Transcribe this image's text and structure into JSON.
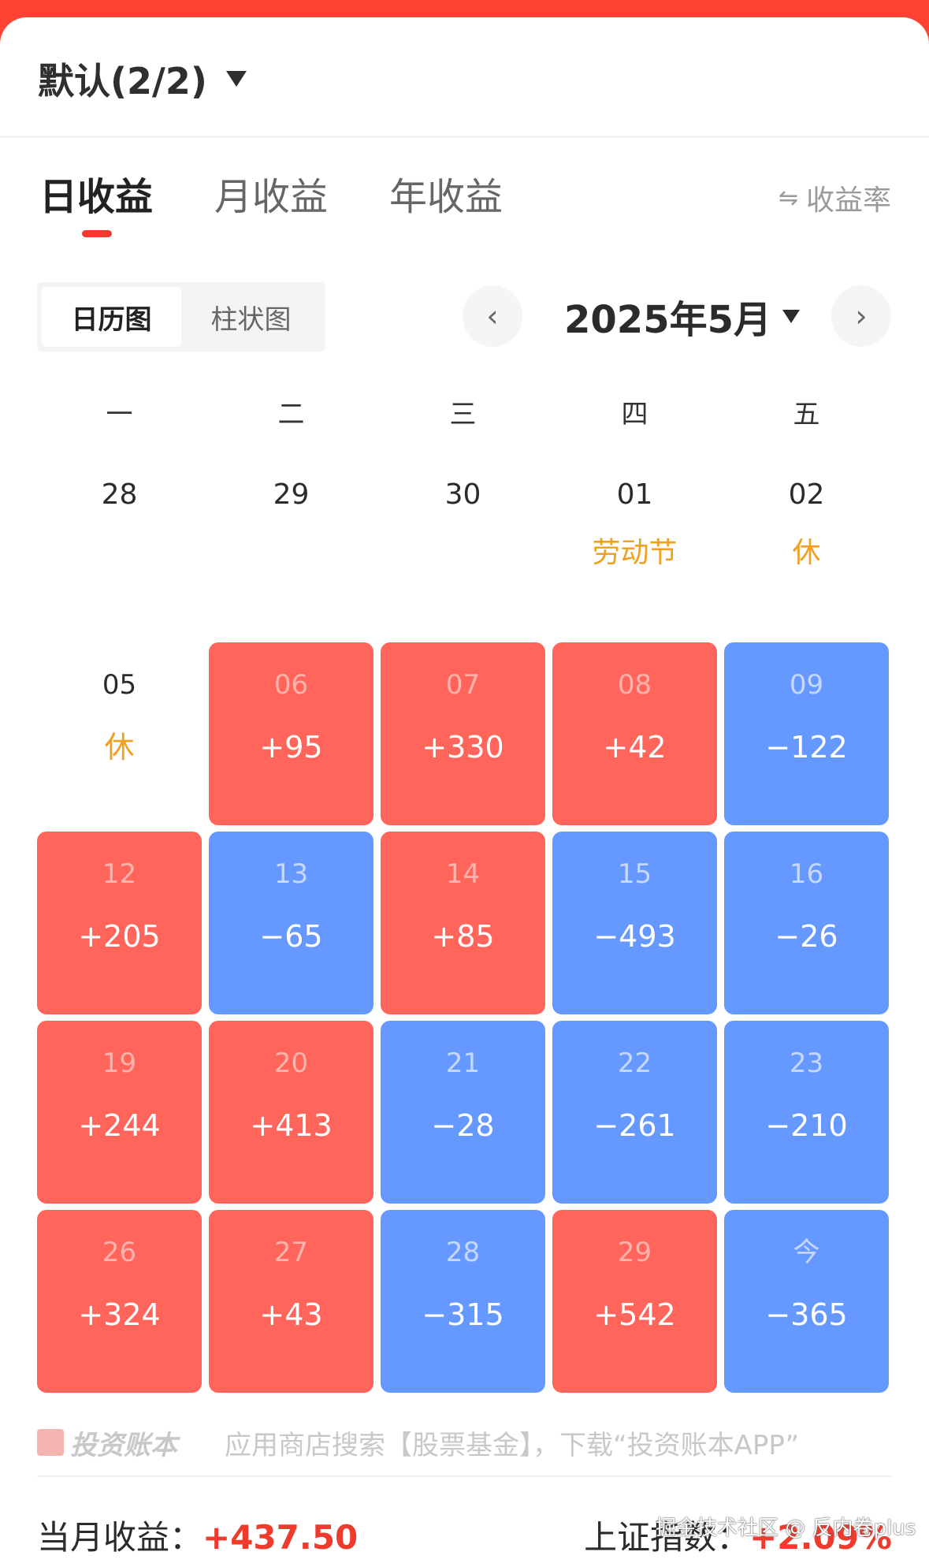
{
  "header": {
    "account_name": "默认(2/2)"
  },
  "tabs": [
    {
      "label": "日收益",
      "active": true
    },
    {
      "label": "月收益",
      "active": false
    },
    {
      "label": "年收益",
      "active": false
    }
  ],
  "toggle_rate": {
    "icon": "⇋",
    "label": "收益率"
  },
  "view_switch": [
    {
      "label": "日历图",
      "active": true
    },
    {
      "label": "柱状图",
      "active": false
    }
  ],
  "month_nav": {
    "prev_icon": "‹",
    "title": "2025年5月",
    "next_icon": "›"
  },
  "colors": {
    "gain": "#ff655a",
    "loss": "#6699ff",
    "holiday": "#f0a020",
    "accent": "#ef3a2e"
  },
  "weekdays": [
    "一",
    "二",
    "三",
    "四",
    "五"
  ],
  "week1": [
    {
      "day": "28",
      "note": ""
    },
    {
      "day": "29",
      "note": ""
    },
    {
      "day": "30",
      "note": ""
    },
    {
      "day": "01",
      "note": "劳动节"
    },
    {
      "day": "02",
      "note": "休"
    }
  ],
  "weeks": [
    [
      {
        "day": "05",
        "value": "休",
        "type": "blank"
      },
      {
        "day": "06",
        "value": "+95",
        "type": "up"
      },
      {
        "day": "07",
        "value": "+330",
        "type": "up"
      },
      {
        "day": "08",
        "value": "+42",
        "type": "up"
      },
      {
        "day": "09",
        "value": "−122",
        "type": "down"
      }
    ],
    [
      {
        "day": "12",
        "value": "+205",
        "type": "up"
      },
      {
        "day": "13",
        "value": "−65",
        "type": "down"
      },
      {
        "day": "14",
        "value": "+85",
        "type": "up"
      },
      {
        "day": "15",
        "value": "−493",
        "type": "down"
      },
      {
        "day": "16",
        "value": "−26",
        "type": "down"
      }
    ],
    [
      {
        "day": "19",
        "value": "+244",
        "type": "up"
      },
      {
        "day": "20",
        "value": "+413",
        "type": "up"
      },
      {
        "day": "21",
        "value": "−28",
        "type": "down"
      },
      {
        "day": "22",
        "value": "−261",
        "type": "down"
      },
      {
        "day": "23",
        "value": "−210",
        "type": "down"
      }
    ],
    [
      {
        "day": "26",
        "value": "+324",
        "type": "up"
      },
      {
        "day": "27",
        "value": "+43",
        "type": "up"
      },
      {
        "day": "28",
        "value": "−315",
        "type": "down"
      },
      {
        "day": "29",
        "value": "+542",
        "type": "up"
      },
      {
        "day": "今",
        "value": "−365",
        "type": "down"
      }
    ]
  ],
  "ad": {
    "brand": "投资账本",
    "text": "应用商店搜索【股票基金】，下载“投资账本APP”"
  },
  "summary": {
    "month_label": "当月收益：",
    "month_value": "+437.50",
    "index_label": "上证指数：",
    "index_value": "+2.09%"
  },
  "watermark": "掘金技术社区 @ 反内卷plus"
}
